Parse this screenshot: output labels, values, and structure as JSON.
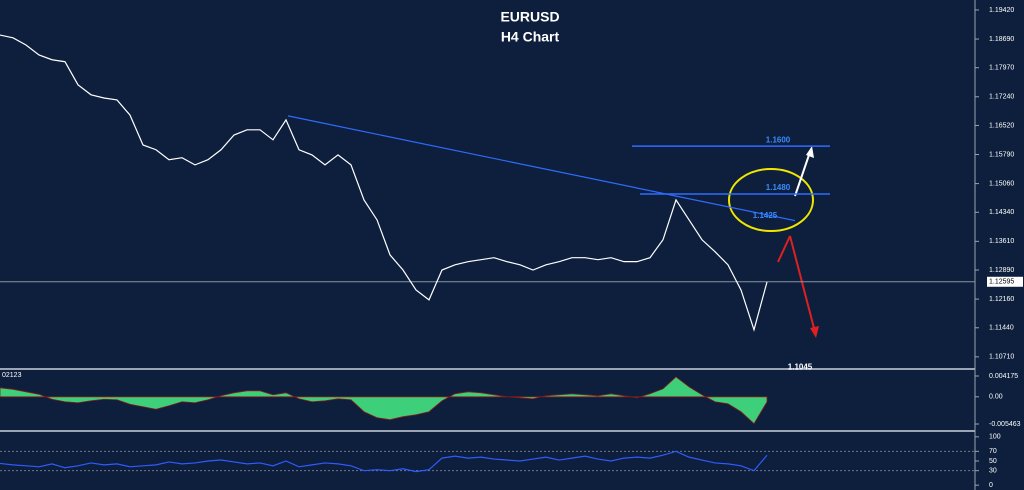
{
  "chart_data": [
    {
      "type": "line",
      "title": "EURUSD",
      "subtitle": "H4 Chart",
      "color": "#ffffff",
      "categories": [
        null,
        null,
        null,
        null,
        null,
        null,
        null,
        null,
        null,
        null,
        null,
        null,
        null,
        null,
        null,
        null,
        null,
        null,
        null,
        null,
        null,
        null,
        null,
        null,
        null,
        null,
        null,
        null,
        null,
        null,
        null,
        null,
        null,
        null,
        null,
        null,
        null,
        null,
        null,
        null,
        null,
        null,
        null,
        null,
        null,
        null,
        null,
        null,
        null,
        null,
        null,
        null,
        null,
        null,
        null,
        null,
        null,
        null,
        null,
        null
      ],
      "values": [
        1.1879,
        1.1872,
        1.1854,
        1.1829,
        1.1817,
        1.1812,
        1.1754,
        1.1729,
        1.1721,
        1.1716,
        1.1678,
        1.1603,
        1.1591,
        1.1566,
        1.1571,
        1.1553,
        1.1566,
        1.1591,
        1.1628,
        1.1641,
        1.1641,
        1.1616,
        1.1666,
        1.1591,
        1.1578,
        1.1553,
        1.1578,
        1.1553,
        1.1465,
        1.1415,
        1.1327,
        1.1289,
        1.1239,
        1.1214,
        1.1289,
        1.1302,
        1.131,
        1.1315,
        1.132,
        1.131,
        1.1302,
        1.1289,
        1.1302,
        1.131,
        1.132,
        1.132,
        1.1315,
        1.132,
        1.131,
        1.131,
        1.132,
        1.1365,
        1.1465,
        1.1415,
        1.1365,
        1.1335,
        1.1302,
        1.1239,
        1.1139,
        1.1259
      ],
      "ylim": [
        1.1043,
        1.1967
      ],
      "yticks": [
        {
          "value": 1.1942,
          "label": "1.19420"
        },
        {
          "value": 1.1869,
          "label": "1.18690"
        },
        {
          "value": 1.1797,
          "label": "1.17970"
        },
        {
          "value": 1.1724,
          "label": "1.17240"
        },
        {
          "value": 1.1652,
          "label": "1.16520"
        },
        {
          "value": 1.1579,
          "label": "1.15790"
        },
        {
          "value": 1.1506,
          "label": "1.15060"
        },
        {
          "value": 1.1434,
          "label": "1.14340"
        },
        {
          "value": 1.1361,
          "label": "1.13610"
        },
        {
          "value": 1.1289,
          "label": "1.12890"
        },
        {
          "value": 1.1216,
          "label": "1.12160"
        },
        {
          "value": 1.1144,
          "label": "1.11440"
        },
        {
          "value": 1.1071,
          "label": "1.10710"
        }
      ],
      "current_price": {
        "value": 1.12595,
        "label": "1.12595"
      },
      "levels": [
        {
          "value": 1.16,
          "label": "1.1600"
        },
        {
          "value": 1.148,
          "label": "1.1480"
        }
      ],
      "annotations": [
        {
          "value": 1.1425,
          "label": "1.1425"
        },
        {
          "value": 1.1045,
          "label": "1.1045"
        }
      ],
      "trendline": {
        "values": [
          1.1676,
          1.1413
        ],
        "color": "#2f6bff"
      }
    },
    {
      "type": "area",
      "label": "02123",
      "color": "#3ecf7a",
      "values": [
        0.0018,
        0.0015,
        0.001,
        0.0005,
        -0.0005,
        -0.001,
        -0.0012,
        -0.0008,
        -0.0005,
        -0.0006,
        -0.0015,
        -0.002,
        -0.0025,
        -0.0018,
        -0.001,
        -0.0012,
        -0.0006,
        0.0002,
        0.0008,
        0.0012,
        0.0012,
        0.0004,
        0.0008,
        -0.0004,
        -0.001,
        -0.0008,
        -0.0004,
        -0.0006,
        -0.003,
        -0.0042,
        -0.0046,
        -0.004,
        -0.0036,
        -0.003,
        -0.0008,
        0.0006,
        0.001,
        0.0008,
        0.0004,
        0.0,
        -0.0002,
        -0.0004,
        0.0002,
        0.0004,
        0.0006,
        0.0004,
        0.0002,
        0.0006,
        0.0002,
        -0.0002,
        0.0006,
        0.0016,
        0.004,
        0.002,
        0.0004,
        -0.001,
        -0.0014,
        -0.003,
        -0.0054,
        -0.001
      ],
      "ylim": [
        -0.00667,
        0.00538
      ],
      "yticks": [
        0.004175,
        {
          "value": 0,
          "label": "0.00"
        },
        -0.005463
      ]
    },
    {
      "type": "line",
      "color": "#2f5bff",
      "values": [
        45,
        42,
        40,
        38,
        44,
        36,
        40,
        46,
        42,
        44,
        38,
        40,
        42,
        48,
        44,
        46,
        50,
        52,
        48,
        44,
        46,
        40,
        50,
        38,
        42,
        46,
        44,
        40,
        30,
        32,
        30,
        34,
        28,
        32,
        56,
        60,
        56,
        58,
        54,
        52,
        50,
        54,
        58,
        52,
        56,
        60,
        54,
        50,
        56,
        58,
        56,
        62,
        70,
        58,
        52,
        46,
        44,
        40,
        30,
        62
      ],
      "ylim": [
        -10,
        110
      ],
      "yticks": [
        100,
        70,
        50,
        30,
        0
      ]
    }
  ]
}
